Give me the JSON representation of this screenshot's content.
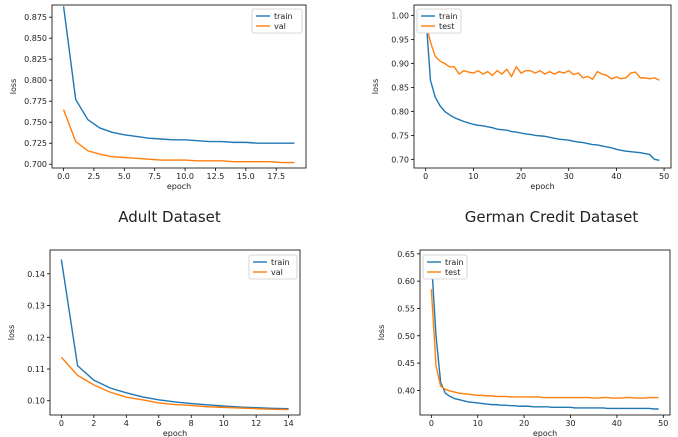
{
  "captions": [
    "Adult Dataset",
    "German Credit Dataset"
  ],
  "colors": {
    "train": "#1f77b4",
    "other": "#ff7f0e",
    "axis": "#000000",
    "text": "#222222"
  },
  "chart_data": [
    {
      "type": "line",
      "xlabel": "epoch",
      "ylabel": "loss",
      "xlim": [
        -0.95,
        19.95
      ],
      "ylim": [
        0.6955,
        0.8895
      ],
      "xticks": [
        0.0,
        2.5,
        5.0,
        7.5,
        10.0,
        12.5,
        15.0,
        17.5
      ],
      "xtick_labels": [
        "0.0",
        "2.5",
        "5.0",
        "7.5",
        "10.0",
        "12.5",
        "15.0",
        "17.5"
      ],
      "yticks": [
        0.7,
        0.725,
        0.75,
        0.775,
        0.8,
        0.825,
        0.85,
        0.875
      ],
      "ytick_labels": [
        "0.700",
        "0.725",
        "0.750",
        "0.775",
        "0.800",
        "0.825",
        "0.850",
        "0.875"
      ],
      "legend": "top-right",
      "x": [
        0,
        1,
        2,
        3,
        4,
        5,
        6,
        7,
        8,
        9,
        10,
        11,
        12,
        13,
        14,
        15,
        16,
        17,
        18,
        19
      ],
      "series": [
        {
          "name": "train",
          "values": [
            0.888,
            0.777,
            0.753,
            0.743,
            0.738,
            0.735,
            0.733,
            0.731,
            0.73,
            0.729,
            0.729,
            0.728,
            0.727,
            0.727,
            0.726,
            0.726,
            0.725,
            0.725,
            0.725,
            0.725
          ]
        },
        {
          "name": "val",
          "values": [
            0.765,
            0.727,
            0.716,
            0.712,
            0.709,
            0.708,
            0.707,
            0.706,
            0.705,
            0.705,
            0.705,
            0.704,
            0.704,
            0.704,
            0.703,
            0.703,
            0.703,
            0.703,
            0.702,
            0.702
          ]
        }
      ]
    },
    {
      "type": "line",
      "xlabel": "epoch",
      "ylabel": "loss",
      "xlim": [
        -2.45,
        51.45
      ],
      "ylim": [
        0.682,
        1.022
      ],
      "xticks": [
        0,
        10,
        20,
        30,
        40,
        50
      ],
      "xtick_labels": [
        "0",
        "10",
        "20",
        "30",
        "40",
        "50"
      ],
      "yticks": [
        0.7,
        0.75,
        0.8,
        0.85,
        0.9,
        0.95,
        1.0
      ],
      "ytick_labels": [
        "0.70",
        "0.75",
        "0.80",
        "0.85",
        "0.90",
        "0.95",
        "1.00"
      ],
      "legend": "top-left",
      "x": [
        0,
        1,
        2,
        3,
        4,
        5,
        6,
        7,
        8,
        9,
        10,
        11,
        12,
        13,
        14,
        15,
        16,
        17,
        18,
        19,
        20,
        21,
        22,
        23,
        24,
        25,
        26,
        27,
        28,
        29,
        30,
        31,
        32,
        33,
        34,
        35,
        36,
        37,
        38,
        39,
        40,
        41,
        42,
        43,
        44,
        45,
        46,
        47,
        48,
        49
      ],
      "series": [
        {
          "name": "train",
          "values": [
            1.005,
            0.865,
            0.83,
            0.812,
            0.8,
            0.793,
            0.787,
            0.783,
            0.779,
            0.776,
            0.773,
            0.771,
            0.77,
            0.768,
            0.766,
            0.763,
            0.762,
            0.761,
            0.758,
            0.757,
            0.755,
            0.753,
            0.752,
            0.75,
            0.749,
            0.748,
            0.746,
            0.744,
            0.742,
            0.741,
            0.74,
            0.738,
            0.736,
            0.735,
            0.733,
            0.731,
            0.73,
            0.728,
            0.726,
            0.724,
            0.721,
            0.719,
            0.717,
            0.716,
            0.715,
            0.714,
            0.712,
            0.71,
            0.7,
            0.698
          ]
        },
        {
          "name": "test",
          "values": [
            0.985,
            0.945,
            0.915,
            0.905,
            0.9,
            0.893,
            0.893,
            0.878,
            0.885,
            0.882,
            0.88,
            0.885,
            0.878,
            0.883,
            0.875,
            0.885,
            0.878,
            0.888,
            0.873,
            0.893,
            0.88,
            0.885,
            0.885,
            0.88,
            0.885,
            0.878,
            0.883,
            0.878,
            0.883,
            0.88,
            0.885,
            0.877,
            0.88,
            0.87,
            0.873,
            0.867,
            0.883,
            0.878,
            0.875,
            0.868,
            0.872,
            0.868,
            0.87,
            0.88,
            0.882,
            0.87,
            0.87,
            0.868,
            0.87,
            0.865
          ]
        }
      ]
    },
    {
      "type": "line",
      "xlabel": "epoch",
      "ylabel": "loss",
      "xlim": [
        -0.7,
        14.7
      ],
      "ylim": [
        0.0955,
        0.1475
      ],
      "xticks": [
        0,
        2,
        4,
        6,
        8,
        10,
        12,
        14
      ],
      "xtick_labels": [
        "0",
        "2",
        "4",
        "6",
        "8",
        "10",
        "12",
        "14"
      ],
      "yticks": [
        0.1,
        0.11,
        0.12,
        0.13,
        0.14
      ],
      "ytick_labels": [
        "0.10",
        "0.11",
        "0.12",
        "0.13",
        "0.14"
      ],
      "legend": "top-right",
      "x": [
        0,
        1,
        2,
        3,
        4,
        5,
        6,
        7,
        8,
        9,
        10,
        11,
        12,
        13,
        14
      ],
      "series": [
        {
          "name": "train",
          "values": [
            0.1445,
            0.111,
            0.1065,
            0.104,
            0.1025,
            0.1012,
            0.1003,
            0.0996,
            0.0991,
            0.0987,
            0.0983,
            0.098,
            0.0978,
            0.0976,
            0.0975
          ]
        },
        {
          "name": "val",
          "values": [
            0.1137,
            0.108,
            0.105,
            0.1027,
            0.1011,
            0.1003,
            0.0993,
            0.0988,
            0.0985,
            0.0981,
            0.0979,
            0.0977,
            0.0975,
            0.0973,
            0.0972
          ]
        }
      ]
    },
    {
      "type": "line",
      "xlabel": "epoch",
      "ylabel": "loss",
      "xlim": [
        -2.45,
        51.45
      ],
      "ylim": [
        0.355,
        0.657
      ],
      "xticks": [
        0,
        10,
        20,
        30,
        40,
        50
      ],
      "xtick_labels": [
        "0",
        "10",
        "20",
        "30",
        "40",
        "50"
      ],
      "yticks": [
        0.4,
        0.45,
        0.5,
        0.55,
        0.6,
        0.65
      ],
      "ytick_labels": [
        "0.40",
        "0.45",
        "0.50",
        "0.55",
        "0.60",
        "0.65"
      ],
      "legend": "top-left",
      "x": [
        0,
        1,
        2,
        3,
        4,
        5,
        6,
        7,
        8,
        9,
        10,
        11,
        12,
        13,
        14,
        15,
        16,
        17,
        18,
        19,
        20,
        21,
        22,
        23,
        24,
        25,
        26,
        27,
        28,
        29,
        30,
        31,
        32,
        33,
        34,
        35,
        36,
        37,
        38,
        39,
        40,
        41,
        42,
        43,
        44,
        45,
        46,
        47,
        48,
        49
      ],
      "series": [
        {
          "name": "train",
          "values": [
            0.64,
            0.5,
            0.415,
            0.395,
            0.389,
            0.385,
            0.383,
            0.381,
            0.379,
            0.378,
            0.377,
            0.376,
            0.375,
            0.374,
            0.374,
            0.373,
            0.373,
            0.372,
            0.372,
            0.371,
            0.371,
            0.371,
            0.37,
            0.37,
            0.37,
            0.37,
            0.369,
            0.369,
            0.369,
            0.369,
            0.369,
            0.368,
            0.368,
            0.368,
            0.368,
            0.368,
            0.368,
            0.368,
            0.367,
            0.367,
            0.367,
            0.367,
            0.367,
            0.367,
            0.367,
            0.367,
            0.367,
            0.367,
            0.366,
            0.366
          ]
        },
        {
          "name": "test",
          "values": [
            0.585,
            0.445,
            0.408,
            0.402,
            0.399,
            0.397,
            0.395,
            0.394,
            0.393,
            0.392,
            0.391,
            0.391,
            0.39,
            0.39,
            0.389,
            0.389,
            0.389,
            0.388,
            0.388,
            0.388,
            0.388,
            0.388,
            0.388,
            0.388,
            0.387,
            0.387,
            0.387,
            0.387,
            0.387,
            0.387,
            0.387,
            0.387,
            0.387,
            0.387,
            0.387,
            0.386,
            0.386,
            0.387,
            0.387,
            0.386,
            0.386,
            0.386,
            0.387,
            0.387,
            0.386,
            0.386,
            0.386,
            0.387,
            0.387,
            0.387
          ]
        }
      ]
    }
  ]
}
